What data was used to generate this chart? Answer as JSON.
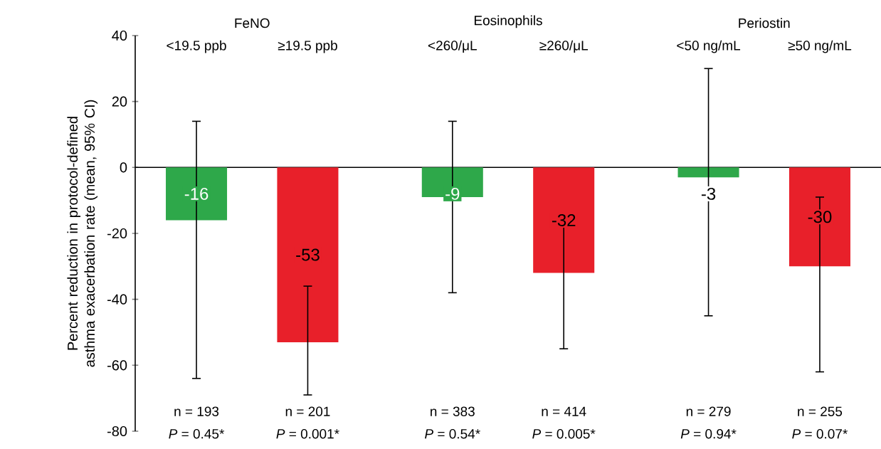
{
  "chart_data": {
    "type": "bar",
    "ylabel": "Percent reduction in protocol-defined asthma exacerbation rate (mean, 95% CI)",
    "categories": [
      "<19.5 ppb",
      "≥19.5 ppb",
      "<260/μL",
      "≥260/μL",
      "<50 ng/mL",
      "≥50 ng/mL"
    ],
    "values": [
      -16,
      -53,
      -9,
      -32,
      -3,
      -30
    ],
    "colors": [
      "#2ea84a",
      "#e8202a",
      "#2ea84a",
      "#e8202a",
      "#2ea84a",
      "#e8202a"
    ],
    "errors": [
      [
        -64,
        14
      ],
      [
        -69,
        -36
      ],
      [
        -38,
        14
      ],
      [
        -55,
        -16
      ],
      [
        -45,
        30
      ],
      [
        -62,
        -9
      ]
    ],
    "data_labels": true,
    "ylim": [
      -80,
      40
    ],
    "yticks": [
      -80,
      -60,
      -40,
      -20,
      0,
      20,
      40
    ],
    "annotations": [
      "FeNO",
      "Eosinophils",
      "Periostin",
      "n = 193",
      "n = 201",
      "n = 383",
      "n = 414",
      "n = 279",
      "n = 255",
      "*P* = 0.45*",
      "*P* = 0.001*",
      "*P* = 0.54*",
      "*P* = 0.005*",
      "*P* = 0.94*",
      "*P* = 0.07*"
    ]
  }
}
